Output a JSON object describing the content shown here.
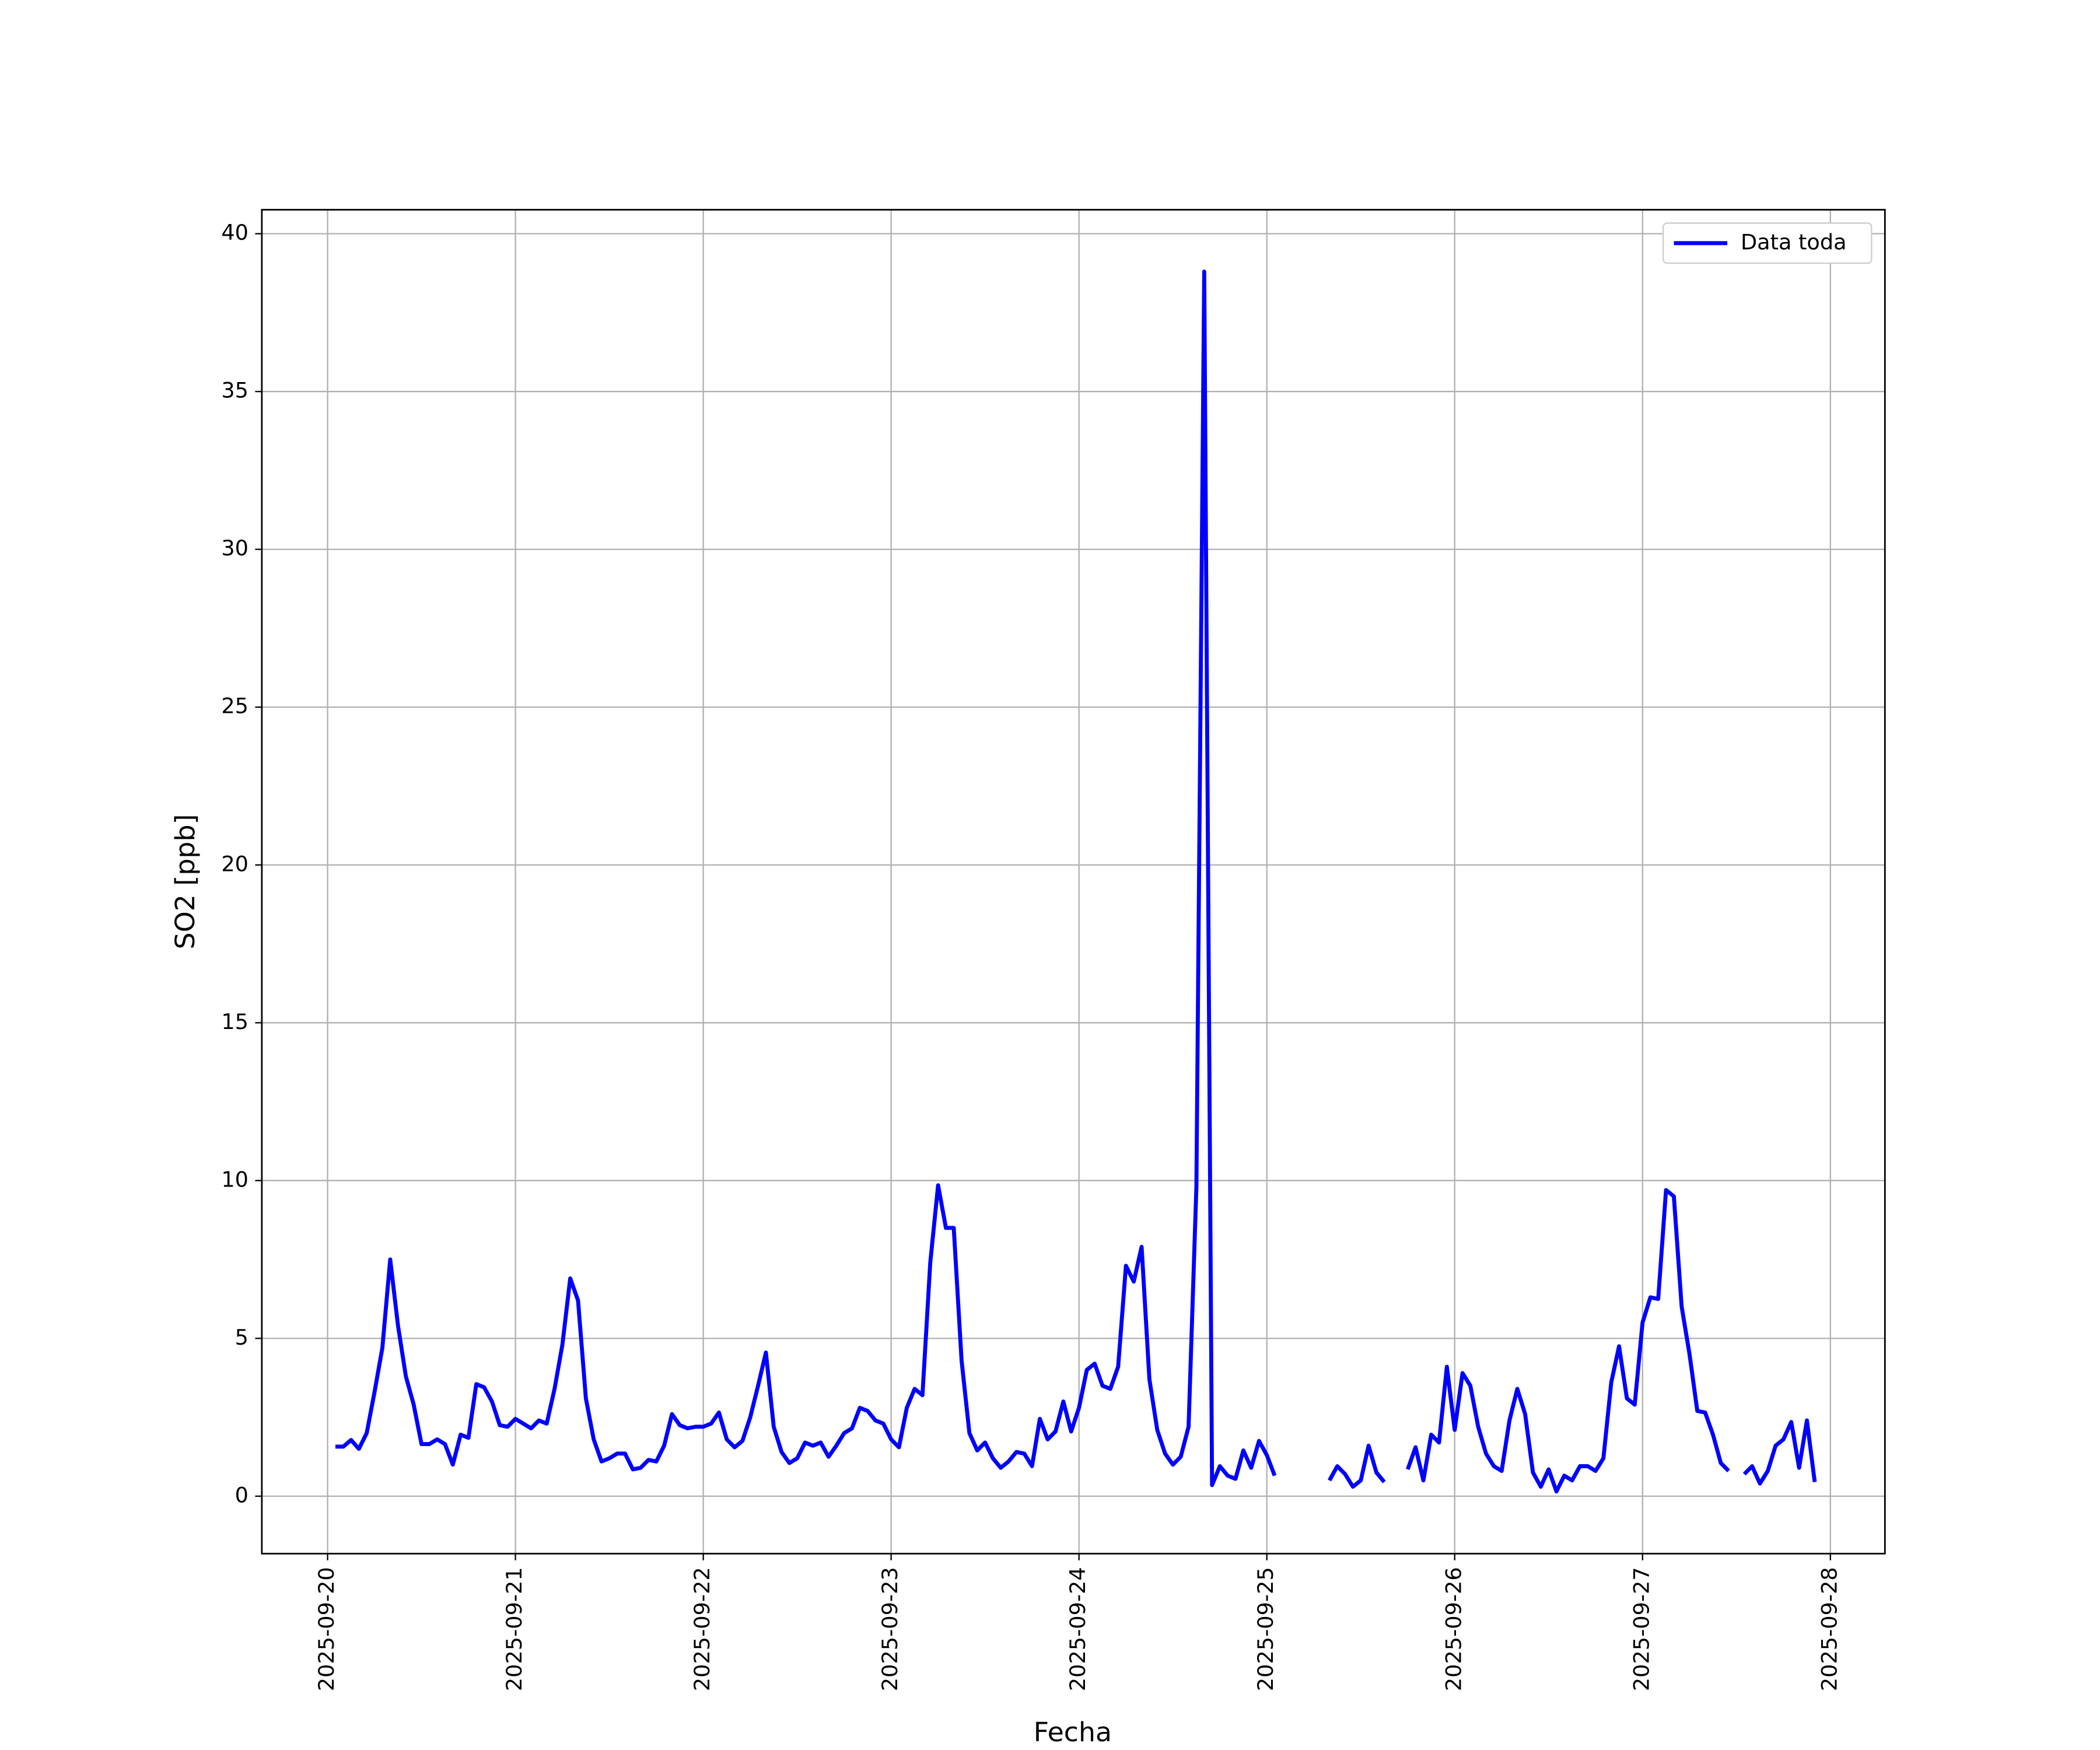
{
  "chart_data": {
    "type": "line",
    "x_label": "Fecha",
    "y_label": "SO2 [ppb]",
    "x": [
      "2025-09-20 01:00",
      "2025-09-20 02:00",
      "2025-09-20 03:00",
      "2025-09-20 04:00",
      "2025-09-20 05:00",
      "2025-09-20 06:00",
      "2025-09-20 07:00",
      "2025-09-20 08:00",
      "2025-09-20 09:00",
      "2025-09-20 10:00",
      "2025-09-20 11:00",
      "2025-09-20 12:00",
      "2025-09-20 13:00",
      "2025-09-20 14:00",
      "2025-09-20 15:00",
      "2025-09-20 16:00",
      "2025-09-20 17:00",
      "2025-09-20 18:00",
      "2025-09-20 19:00",
      "2025-09-20 20:00",
      "2025-09-20 21:00",
      "2025-09-20 22:00",
      "2025-09-20 23:00",
      "2025-09-21 00:00",
      "2025-09-21 01:00",
      "2025-09-21 02:00",
      "2025-09-21 03:00",
      "2025-09-21 04:00",
      "2025-09-21 05:00",
      "2025-09-21 06:00",
      "2025-09-21 07:00",
      "2025-09-21 08:00",
      "2025-09-21 09:00",
      "2025-09-21 10:00",
      "2025-09-21 11:00",
      "2025-09-21 12:00",
      "2025-09-21 13:00",
      "2025-09-21 14:00",
      "2025-09-21 15:00",
      "2025-09-21 16:00",
      "2025-09-21 17:00",
      "2025-09-21 18:00",
      "2025-09-21 19:00",
      "2025-09-21 20:00",
      "2025-09-21 21:00",
      "2025-09-21 22:00",
      "2025-09-21 23:00",
      "2025-09-22 00:00",
      "2025-09-22 01:00",
      "2025-09-22 02:00",
      "2025-09-22 03:00",
      "2025-09-22 04:00",
      "2025-09-22 05:00",
      "2025-09-22 06:00",
      "2025-09-22 07:00",
      "2025-09-22 08:00",
      "2025-09-22 09:00",
      "2025-09-22 10:00",
      "2025-09-22 11:00",
      "2025-09-22 12:00",
      "2025-09-22 13:00",
      "2025-09-22 14:00",
      "2025-09-22 15:00",
      "2025-09-22 16:00",
      "2025-09-22 17:00",
      "2025-09-22 18:00",
      "2025-09-22 19:00",
      "2025-09-22 20:00",
      "2025-09-22 21:00",
      "2025-09-22 22:00",
      "2025-09-22 23:00",
      "2025-09-23 00:00",
      "2025-09-23 01:00",
      "2025-09-23 02:00",
      "2025-09-23 03:00",
      "2025-09-23 04:00",
      "2025-09-23 05:00",
      "2025-09-23 06:00",
      "2025-09-23 07:00",
      "2025-09-23 08:00",
      "2025-09-23 09:00",
      "2025-09-23 10:00",
      "2025-09-23 11:00",
      "2025-09-23 12:00",
      "2025-09-23 13:00",
      "2025-09-23 14:00",
      "2025-09-23 15:00",
      "2025-09-23 16:00",
      "2025-09-23 17:00",
      "2025-09-23 18:00",
      "2025-09-23 19:00",
      "2025-09-23 20:00",
      "2025-09-23 21:00",
      "2025-09-23 22:00",
      "2025-09-23 23:00",
      "2025-09-24 00:00",
      "2025-09-24 01:00",
      "2025-09-24 02:00",
      "2025-09-24 03:00",
      "2025-09-24 04:00",
      "2025-09-24 05:00",
      "2025-09-24 06:00",
      "2025-09-24 07:00",
      "2025-09-24 08:00",
      "2025-09-24 09:00",
      "2025-09-24 10:00",
      "2025-09-24 11:00",
      "2025-09-24 12:00",
      "2025-09-24 13:00",
      "2025-09-24 14:00",
      "2025-09-24 15:00",
      "2025-09-24 16:00",
      "2025-09-24 17:00",
      "2025-09-24 18:00",
      "2025-09-24 19:00",
      "2025-09-24 20:00",
      "2025-09-24 21:00",
      "2025-09-24 22:00",
      "2025-09-24 23:00",
      "2025-09-25 00:00",
      "2025-09-25 01:00",
      "2025-09-25 02:00",
      "2025-09-25 03:00",
      "2025-09-25 04:00",
      "2025-09-25 05:00",
      "2025-09-25 06:00",
      "2025-09-25 07:00",
      "2025-09-25 08:00",
      "2025-09-25 09:00",
      "2025-09-25 10:00",
      "2025-09-25 11:00",
      "2025-09-25 12:00",
      "2025-09-25 13:00",
      "2025-09-25 14:00",
      "2025-09-25 15:00",
      "2025-09-25 16:00",
      "2025-09-25 17:00",
      "2025-09-25 18:00",
      "2025-09-25 19:00",
      "2025-09-25 20:00",
      "2025-09-25 21:00",
      "2025-09-25 22:00",
      "2025-09-25 23:00",
      "2025-09-26 00:00",
      "2025-09-26 01:00",
      "2025-09-26 02:00",
      "2025-09-26 03:00",
      "2025-09-26 04:00",
      "2025-09-26 05:00",
      "2025-09-26 06:00",
      "2025-09-26 07:00",
      "2025-09-26 08:00",
      "2025-09-26 09:00",
      "2025-09-26 10:00",
      "2025-09-26 11:00",
      "2025-09-26 12:00",
      "2025-09-26 13:00",
      "2025-09-26 14:00",
      "2025-09-26 15:00",
      "2025-09-26 16:00",
      "2025-09-26 17:00",
      "2025-09-26 18:00",
      "2025-09-26 19:00",
      "2025-09-26 20:00",
      "2025-09-26 21:00",
      "2025-09-26 22:00",
      "2025-09-26 23:00",
      "2025-09-27 00:00",
      "2025-09-27 01:00",
      "2025-09-27 02:00",
      "2025-09-27 03:00",
      "2025-09-27 04:00",
      "2025-09-27 05:00",
      "2025-09-27 06:00",
      "2025-09-27 07:00",
      "2025-09-27 08:00",
      "2025-09-27 09:00",
      "2025-09-27 10:00",
      "2025-09-27 11:00",
      "2025-09-27 12:00",
      "2025-09-27 13:00",
      "2025-09-27 14:00",
      "2025-09-27 15:00",
      "2025-09-27 16:00",
      "2025-09-27 17:00",
      "2025-09-27 18:00",
      "2025-09-27 19:00",
      "2025-09-27 20:00",
      "2025-09-27 21:00",
      "2025-09-27 22:00"
    ],
    "series": [
      {
        "name": "Data toda",
        "color": "#0000ff",
        "values": [
          1.57,
          1.57,
          1.78,
          1.5,
          2.0,
          3.3,
          4.7,
          7.5,
          5.4,
          3.8,
          2.9,
          1.65,
          1.65,
          1.8,
          1.65,
          1.0,
          1.95,
          1.85,
          3.55,
          3.45,
          3.0,
          2.25,
          2.2,
          2.45,
          2.3,
          2.15,
          2.4,
          2.3,
          3.4,
          4.8,
          6.9,
          6.2,
          3.1,
          1.8,
          1.1,
          1.2,
          1.35,
          1.35,
          0.85,
          0.9,
          1.15,
          1.1,
          1.6,
          2.6,
          2.25,
          2.15,
          2.2,
          2.2,
          2.3,
          2.65,
          1.8,
          1.55,
          1.75,
          2.5,
          3.5,
          4.55,
          2.2,
          1.4,
          1.05,
          1.2,
          1.7,
          1.6,
          1.7,
          1.25,
          1.6,
          2.0,
          2.15,
          2.8,
          2.7,
          2.4,
          2.3,
          1.8,
          1.55,
          2.8,
          3.4,
          3.2,
          7.4,
          9.85,
          8.5,
          8.5,
          4.3,
          2.0,
          1.45,
          1.7,
          1.2,
          0.9,
          1.1,
          1.4,
          1.35,
          0.95,
          2.45,
          1.8,
          2.05,
          3.0,
          2.05,
          2.8,
          4.0,
          4.2,
          3.5,
          3.4,
          4.1,
          7.3,
          6.8,
          7.9,
          3.7,
          2.1,
          1.35,
          1.0,
          1.25,
          2.2,
          9.8,
          38.8,
          0.35,
          0.95,
          0.65,
          0.55,
          1.45,
          0.9,
          1.75,
          1.3,
          0.65,
          null,
          null,
          null,
          null,
          null,
          null,
          0.5,
          0.95,
          0.7,
          0.3,
          0.5,
          1.6,
          0.75,
          0.45,
          null,
          null,
          0.85,
          1.55,
          0.5,
          1.95,
          1.7,
          4.1,
          2.1,
          3.9,
          3.5,
          2.2,
          1.35,
          0.95,
          0.8,
          2.4,
          3.4,
          2.6,
          0.75,
          0.3,
          0.85,
          0.15,
          0.65,
          0.5,
          0.95,
          0.95,
          0.8,
          1.2,
          3.6,
          4.75,
          3.1,
          2.9,
          5.5,
          6.3,
          6.25,
          9.7,
          9.5,
          6.0,
          4.5,
          2.7,
          2.65,
          1.95,
          1.05,
          0.8,
          null,
          0.7,
          0.95,
          0.4,
          0.8,
          1.6,
          1.8,
          2.35,
          0.9,
          2.4,
          0.45
        ]
      }
    ],
    "xlim": [
      "2025-09-19 15:36",
      "2025-09-28 06:58"
    ],
    "xticks": [
      "2025-09-20",
      "2025-09-21",
      "2025-09-22",
      "2025-09-23",
      "2025-09-24",
      "2025-09-25",
      "2025-09-26",
      "2025-09-27",
      "2025-09-28"
    ],
    "ylim": [
      -1.82,
      40.76
    ],
    "yticks": [
      0,
      5,
      10,
      15,
      20,
      25,
      30,
      35,
      40
    ],
    "grid": true,
    "legend": "upper right"
  }
}
